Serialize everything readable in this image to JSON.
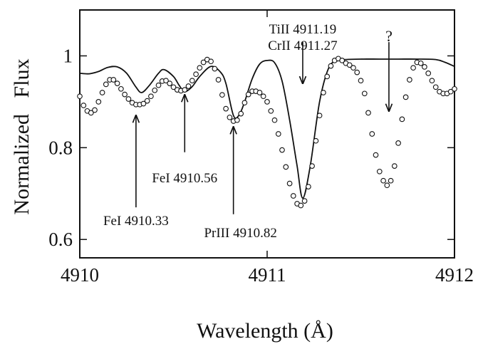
{
  "chart_data": {
    "type": "line",
    "title": "",
    "xlabel": "Wavelength (Å)",
    "ylabel": "Normalized   Flux",
    "xlim": [
      4910,
      4912
    ],
    "ylim": [
      0.56,
      1.1
    ],
    "xticks": [
      4910,
      4911,
      4912
    ],
    "xtick_labels": [
      "4910",
      "4911",
      "4912"
    ],
    "yticks": [
      0.6,
      0.8,
      1.0
    ],
    "ytick_labels": [
      "0.6",
      "0.8",
      "1"
    ],
    "grid": false,
    "legend": "none",
    "series": [
      {
        "style": "solid-line",
        "color": "#111111",
        "points": [
          [
            4910.0,
            0.962
          ],
          [
            4910.05,
            0.961
          ],
          [
            4910.1,
            0.966
          ],
          [
            4910.15,
            0.975
          ],
          [
            4910.2,
            0.976
          ],
          [
            4910.25,
            0.962
          ],
          [
            4910.3,
            0.932
          ],
          [
            4910.33,
            0.92
          ],
          [
            4910.37,
            0.935
          ],
          [
            4910.42,
            0.962
          ],
          [
            4910.45,
            0.97
          ],
          [
            4910.5,
            0.955
          ],
          [
            4910.53,
            0.936
          ],
          [
            4910.56,
            0.922
          ],
          [
            4910.6,
            0.933
          ],
          [
            4910.64,
            0.955
          ],
          [
            4910.7,
            0.977
          ],
          [
            4910.75,
            0.965
          ],
          [
            4910.78,
            0.94
          ],
          [
            4910.82,
            0.87
          ],
          [
            4910.85,
            0.871
          ],
          [
            4910.88,
            0.9
          ],
          [
            4910.92,
            0.95
          ],
          [
            4910.96,
            0.982
          ],
          [
            4911.0,
            0.99
          ],
          [
            4911.04,
            0.985
          ],
          [
            4911.08,
            0.945
          ],
          [
            4911.12,
            0.86
          ],
          [
            4911.16,
            0.76
          ],
          [
            4911.19,
            0.69
          ],
          [
            4911.23,
            0.76
          ],
          [
            4911.28,
            0.9
          ],
          [
            4911.33,
            0.975
          ],
          [
            4911.38,
            0.99
          ],
          [
            4911.42,
            0.992
          ],
          [
            4911.5,
            0.993
          ],
          [
            4911.6,
            0.993
          ],
          [
            4911.7,
            0.993
          ],
          [
            4911.8,
            0.993
          ],
          [
            4911.9,
            0.992
          ],
          [
            4911.95,
            0.986
          ],
          [
            4912.0,
            0.977
          ]
        ]
      },
      {
        "style": "open-circles",
        "color": "#111111",
        "points": [
          [
            4910.0,
            0.912
          ],
          [
            4910.02,
            0.892
          ],
          [
            4910.04,
            0.88
          ],
          [
            4910.06,
            0.876
          ],
          [
            4910.08,
            0.882
          ],
          [
            4910.1,
            0.9
          ],
          [
            4910.12,
            0.92
          ],
          [
            4910.14,
            0.938
          ],
          [
            4910.16,
            0.948
          ],
          [
            4910.18,
            0.948
          ],
          [
            4910.2,
            0.94
          ],
          [
            4910.22,
            0.928
          ],
          [
            4910.24,
            0.916
          ],
          [
            4910.26,
            0.906
          ],
          [
            4910.28,
            0.898
          ],
          [
            4910.3,
            0.894
          ],
          [
            4910.32,
            0.894
          ],
          [
            4910.34,
            0.896
          ],
          [
            4910.36,
            0.902
          ],
          [
            4910.38,
            0.912
          ],
          [
            4910.4,
            0.925
          ],
          [
            4910.42,
            0.936
          ],
          [
            4910.44,
            0.945
          ],
          [
            4910.46,
            0.946
          ],
          [
            4910.48,
            0.94
          ],
          [
            4910.5,
            0.932
          ],
          [
            4910.52,
            0.926
          ],
          [
            4910.54,
            0.924
          ],
          [
            4910.56,
            0.926
          ],
          [
            4910.58,
            0.934
          ],
          [
            4910.6,
            0.946
          ],
          [
            4910.62,
            0.96
          ],
          [
            4910.64,
            0.974
          ],
          [
            4910.66,
            0.986
          ],
          [
            4910.68,
            0.992
          ],
          [
            4910.7,
            0.988
          ],
          [
            4910.72,
            0.972
          ],
          [
            4910.74,
            0.948
          ],
          [
            4910.76,
            0.915
          ],
          [
            4910.78,
            0.885
          ],
          [
            4910.8,
            0.866
          ],
          [
            4910.82,
            0.858
          ],
          [
            4910.84,
            0.86
          ],
          [
            4910.86,
            0.874
          ],
          [
            4910.88,
            0.898
          ],
          [
            4910.9,
            0.916
          ],
          [
            4910.92,
            0.923
          ],
          [
            4910.94,
            0.923
          ],
          [
            4910.96,
            0.92
          ],
          [
            4910.98,
            0.912
          ],
          [
            4911.0,
            0.9
          ],
          [
            4911.02,
            0.88
          ],
          [
            4911.04,
            0.86
          ],
          [
            4911.06,
            0.83
          ],
          [
            4911.08,
            0.795
          ],
          [
            4911.1,
            0.758
          ],
          [
            4911.12,
            0.722
          ],
          [
            4911.14,
            0.695
          ],
          [
            4911.16,
            0.678
          ],
          [
            4911.18,
            0.674
          ],
          [
            4911.2,
            0.684
          ],
          [
            4911.22,
            0.715
          ],
          [
            4911.24,
            0.76
          ],
          [
            4911.26,
            0.815
          ],
          [
            4911.28,
            0.87
          ],
          [
            4911.3,
            0.92
          ],
          [
            4911.32,
            0.955
          ],
          [
            4911.34,
            0.978
          ],
          [
            4911.36,
            0.99
          ],
          [
            4911.38,
            0.994
          ],
          [
            4911.4,
            0.99
          ],
          [
            4911.42,
            0.984
          ],
          [
            4911.44,
            0.98
          ],
          [
            4911.46,
            0.974
          ],
          [
            4911.48,
            0.964
          ],
          [
            4911.5,
            0.946
          ],
          [
            4911.52,
            0.918
          ],
          [
            4911.54,
            0.876
          ],
          [
            4911.56,
            0.83
          ],
          [
            4911.58,
            0.784
          ],
          [
            4911.6,
            0.748
          ],
          [
            4911.62,
            0.728
          ],
          [
            4911.64,
            0.718
          ],
          [
            4911.66,
            0.728
          ],
          [
            4911.68,
            0.76
          ],
          [
            4911.7,
            0.81
          ],
          [
            4911.72,
            0.862
          ],
          [
            4911.74,
            0.91
          ],
          [
            4911.76,
            0.948
          ],
          [
            4911.78,
            0.974
          ],
          [
            4911.8,
            0.986
          ],
          [
            4911.82,
            0.984
          ],
          [
            4911.84,
            0.976
          ],
          [
            4911.86,
            0.962
          ],
          [
            4911.88,
            0.946
          ],
          [
            4911.9,
            0.932
          ],
          [
            4911.92,
            0.922
          ],
          [
            4911.94,
            0.918
          ],
          [
            4911.96,
            0.918
          ],
          [
            4911.98,
            0.922
          ],
          [
            4912.0,
            0.928
          ]
        ]
      }
    ],
    "annotations": [
      {
        "lines": [
          "TiII 4911.19",
          "CrII 4911.27"
        ],
        "x": 4911.19,
        "arrow_from": 1.03,
        "arrow_to": 0.94
      },
      {
        "lines": [
          "?"
        ],
        "x": 4911.65,
        "arrow_from": 1.03,
        "arrow_to": 0.88
      },
      {
        "lines": [
          "FeI 4910.56"
        ],
        "x": 4910.56,
        "arrow_from": 0.79,
        "arrow_to": 0.915
      },
      {
        "lines": [
          "FeI 4910.33"
        ],
        "x": 4910.3,
        "arrow_from": 0.67,
        "arrow_to": 0.87
      },
      {
        "lines": [
          "PrIII 4910.82"
        ],
        "x": 4910.82,
        "arrow_from": 0.655,
        "arrow_to": 0.845
      }
    ]
  }
}
